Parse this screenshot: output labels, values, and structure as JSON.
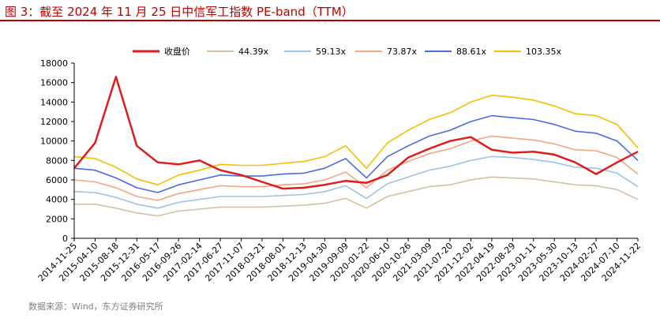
{
  "header": {
    "title": "图 3：截至 2024 年 11 月 25 日中信军工指数 PE-band（TTM）"
  },
  "footer": {
    "source": "数据来源：Wind，东方证券研究所"
  },
  "chart_data": {
    "type": "line",
    "title": "图 3：截至 2024 年 11 月 25 日中信军工指数 PE-band（TTM）",
    "xlabel": "",
    "ylabel": "",
    "ylim": [
      0,
      18000
    ],
    "yticks": [
      0,
      2000,
      4000,
      6000,
      8000,
      10000,
      12000,
      14000,
      16000,
      18000
    ],
    "categories": [
      "2014-11-25",
      "2015-04-10",
      "2015-08-18",
      "2015-12-31",
      "2016-05-17",
      "2016-09-26",
      "2017-02-14",
      "2017-06-27",
      "2017-11-07",
      "2018-03-21",
      "2018-08-01",
      "2018-12-13",
      "2019-04-30",
      "2019-09-09",
      "2020-01-22",
      "2020-06-10",
      "2020-10-26",
      "2021-03-09",
      "2021-07-20",
      "2021-12-02",
      "2022-04-19",
      "2022-08-29",
      "2023-01-11",
      "2023-05-30",
      "2023-10-13",
      "2024-02-27",
      "2024-07-10",
      "2024-11-22"
    ],
    "legend_position": "top",
    "grid": false,
    "colors": {
      "close": "#e31a1c",
      "pe1": "#d2c0a5",
      "pe2": "#9dc3e6",
      "pe3": "#f4a582",
      "pe4": "#4a6be0",
      "pe5": "#f5c000"
    },
    "series": [
      {
        "name": "收盘价",
        "key": "close",
        "values": [
          7200,
          9800,
          16600,
          9500,
          7800,
          7600,
          8000,
          7000,
          6500,
          5800,
          5100,
          5200,
          5500,
          5900,
          5700,
          6500,
          8300,
          9200,
          10000,
          10400,
          9100,
          8800,
          8900,
          8600,
          7800,
          6600,
          7800,
          8900
        ]
      },
      {
        "name": "44.39x",
        "key": "pe1",
        "values": [
          3500,
          3500,
          3100,
          2600,
          2300,
          2800,
          3000,
          3200,
          3200,
          3200,
          3300,
          3400,
          3600,
          4100,
          3100,
          4300,
          4800,
          5300,
          5500,
          6000,
          6300,
          6200,
          6100,
          5800,
          5500,
          5400,
          5000,
          4000
        ]
      },
      {
        "name": "59.13x",
        "key": "pe2",
        "values": [
          4800,
          4700,
          4200,
          3500,
          3100,
          3700,
          4000,
          4300,
          4300,
          4300,
          4400,
          4500,
          4800,
          5400,
          4100,
          5600,
          6300,
          7000,
          7400,
          8000,
          8400,
          8300,
          8100,
          7800,
          7300,
          7200,
          6700,
          5300
        ]
      },
      {
        "name": "73.87x",
        "key": "pe3",
        "values": [
          6000,
          5800,
          5200,
          4300,
          3900,
          4600,
          5000,
          5400,
          5300,
          5300,
          5500,
          5600,
          6000,
          6800,
          5200,
          7000,
          7900,
          8700,
          9200,
          10000,
          10500,
          10300,
          10100,
          9700,
          9100,
          9000,
          8300,
          6600
        ]
      },
      {
        "name": "88.61x",
        "key": "pe4",
        "values": [
          7200,
          7000,
          6200,
          5200,
          4700,
          5500,
          6000,
          6500,
          6400,
          6400,
          6600,
          6700,
          7200,
          8200,
          6200,
          8400,
          9500,
          10500,
          11100,
          12000,
          12600,
          12400,
          12200,
          11700,
          11000,
          10800,
          10000,
          8000
        ]
      },
      {
        "name": "103.35x",
        "key": "pe5",
        "values": [
          8400,
          8200,
          7300,
          6100,
          5500,
          6500,
          7000,
          7600,
          7500,
          7500,
          7700,
          7900,
          8400,
          9500,
          7200,
          9800,
          11100,
          12200,
          12900,
          14000,
          14700,
          14500,
          14200,
          13600,
          12800,
          12600,
          11700,
          9300
        ]
      }
    ]
  }
}
